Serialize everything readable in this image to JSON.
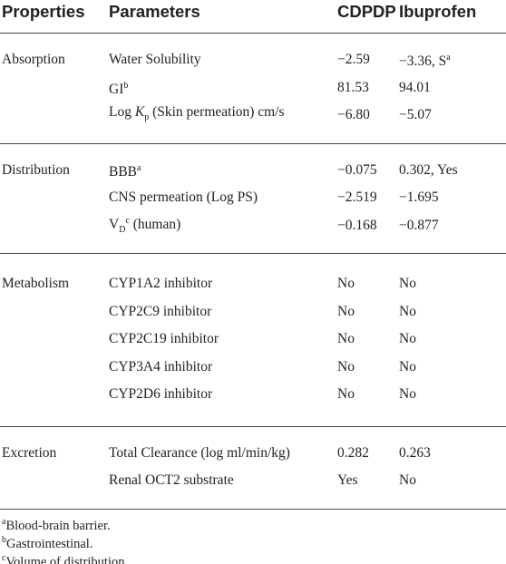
{
  "table": {
    "header": [
      "Properties",
      "Parameters",
      "CDPDP",
      "Ibuprofen"
    ],
    "groups": [
      {
        "property": "Absorption",
        "rows": [
          {
            "parameter": [
              {
                "text": "Water Solubility"
              }
            ],
            "cdpdp": [
              {
                "text": "−2.59"
              }
            ],
            "ibuprofen": [
              {
                "text": "−3.36, S"
              },
              {
                "text": "a",
                "style": "sup"
              }
            ]
          },
          {
            "parameter": [
              {
                "text": "GI"
              },
              {
                "text": "b",
                "style": "sup"
              }
            ],
            "cdpdp": [
              {
                "text": "81.53"
              }
            ],
            "ibuprofen": [
              {
                "text": "94.01"
              }
            ]
          },
          {
            "parameter": [
              {
                "text": "Log "
              },
              {
                "text": "K",
                "style": "italic"
              },
              {
                "text": "p",
                "style": "sub"
              },
              {
                "text": " (Skin permeation) cm/s"
              }
            ],
            "cdpdp": [
              {
                "text": "−6.80"
              }
            ],
            "ibuprofen": [
              {
                "text": "−5.07"
              }
            ]
          }
        ]
      },
      {
        "property": "Distribution",
        "rows": [
          {
            "parameter": [
              {
                "text": "BBB"
              },
              {
                "text": "a",
                "style": "sup"
              }
            ],
            "cdpdp": [
              {
                "text": "−0.075"
              }
            ],
            "ibuprofen": [
              {
                "text": "0.302, Yes"
              }
            ]
          },
          {
            "parameter": [
              {
                "text": "CNS permeation (Log PS)"
              }
            ],
            "cdpdp": [
              {
                "text": "−2.519"
              }
            ],
            "ibuprofen": [
              {
                "text": "−1.695"
              }
            ]
          },
          {
            "parameter": [
              {
                "text": "V"
              },
              {
                "text": "D",
                "style": "sub"
              },
              {
                "text": "c",
                "style": "sup"
              },
              {
                "text": " (human)"
              }
            ],
            "cdpdp": [
              {
                "text": "−0.168"
              }
            ],
            "ibuprofen": [
              {
                "text": "−0.877"
              }
            ]
          }
        ]
      },
      {
        "property": "Metabolism",
        "rows": [
          {
            "parameter": [
              {
                "text": "CYP1A2 inhibitor"
              }
            ],
            "cdpdp": [
              {
                "text": "No"
              }
            ],
            "ibuprofen": [
              {
                "text": "No"
              }
            ]
          },
          {
            "parameter": [
              {
                "text": "CYP2C9 inhibitor"
              }
            ],
            "cdpdp": [
              {
                "text": "No"
              }
            ],
            "ibuprofen": [
              {
                "text": "No"
              }
            ]
          },
          {
            "parameter": [
              {
                "text": "CYP2C19 inhibitor"
              }
            ],
            "cdpdp": [
              {
                "text": "No"
              }
            ],
            "ibuprofen": [
              {
                "text": "No"
              }
            ]
          },
          {
            "parameter": [
              {
                "text": "CYP3A4 inhibitor"
              }
            ],
            "cdpdp": [
              {
                "text": "No"
              }
            ],
            "ibuprofen": [
              {
                "text": "No"
              }
            ]
          },
          {
            "parameter": [
              {
                "text": "CYP2D6 inhibitor"
              }
            ],
            "cdpdp": [
              {
                "text": "No"
              }
            ],
            "ibuprofen": [
              {
                "text": "No"
              }
            ]
          }
        ]
      },
      {
        "property": "Excretion",
        "rows": [
          {
            "parameter": [
              {
                "text": "Total Clearance (log ml/min/kg)"
              }
            ],
            "cdpdp": [
              {
                "text": "0.282"
              }
            ],
            "ibuprofen": [
              {
                "text": "0.263"
              }
            ]
          },
          {
            "parameter": [
              {
                "text": "Renal OCT2 substrate"
              }
            ],
            "cdpdp": [
              {
                "text": "Yes"
              }
            ],
            "ibuprofen": [
              {
                "text": "No"
              }
            ]
          }
        ]
      }
    ],
    "footnotes": [
      [
        {
          "text": "a",
          "style": "sup"
        },
        {
          "text": "Blood-brain barrier."
        }
      ],
      [
        {
          "text": "b",
          "style": "sup"
        },
        {
          "text": "Gastrointestinal."
        }
      ],
      [
        {
          "text": "c",
          "style": "sup"
        },
        {
          "text": "Volume of distribution."
        }
      ]
    ]
  }
}
